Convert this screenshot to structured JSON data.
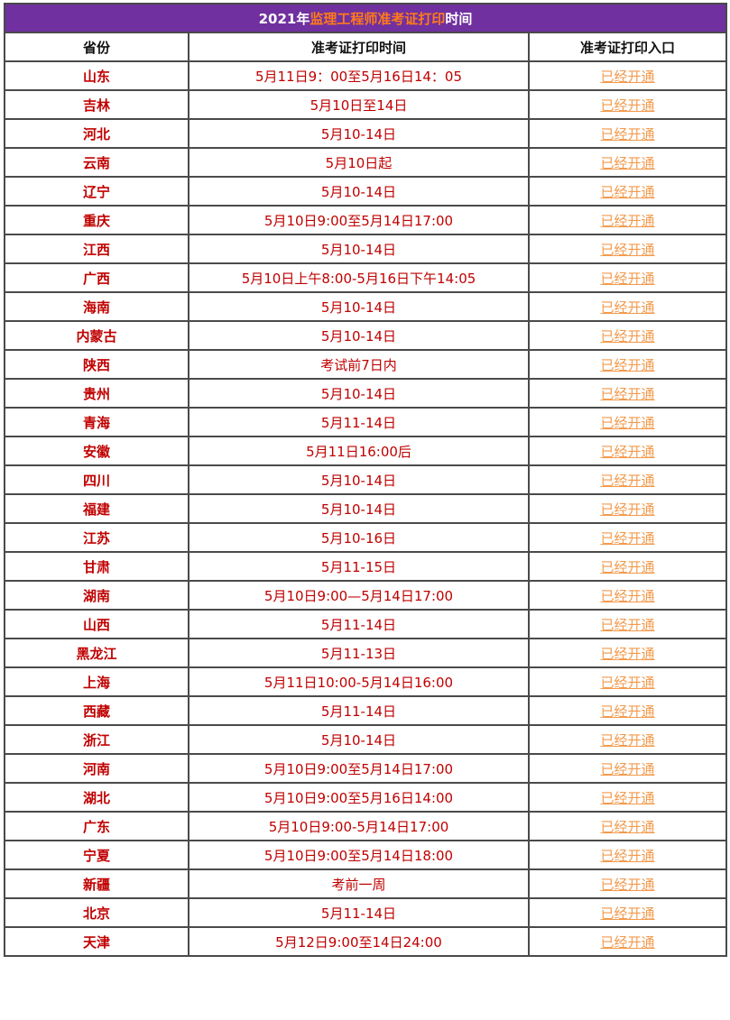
{
  "title": {
    "prefix": "2021年",
    "highlight": "监理工程师准考证打印",
    "suffix": "时间"
  },
  "headers": [
    "省份",
    "准考证打印时间",
    "准考证打印入口"
  ],
  "colors": {
    "title_bg": "#7030a0",
    "highlight": "#ff7a1a",
    "province": "#c00000",
    "time": "#c00000",
    "link": "#f39a4c"
  },
  "rows": [
    {
      "province": "山东",
      "time": "5月11日9：00至5月16日14：05",
      "entry": "已经开通"
    },
    {
      "province": "吉林",
      "time": "5月10日至14日",
      "entry": "已经开通"
    },
    {
      "province": "河北",
      "time": "5月10-14日",
      "entry": "已经开通"
    },
    {
      "province": "云南",
      "time": "5月10日起",
      "entry": "已经开通"
    },
    {
      "province": "辽宁",
      "time": "5月10-14日",
      "entry": "已经开通"
    },
    {
      "province": "重庆",
      "time": "5月10日9:00至5月14日17:00",
      "entry": "已经开通"
    },
    {
      "province": "江西",
      "time": "5月10-14日",
      "entry": "已经开通"
    },
    {
      "province": "广西",
      "time": "5月10日上午8:00-5月16日下午14:05",
      "entry": "已经开通"
    },
    {
      "province": "海南",
      "time": "5月10-14日",
      "entry": "已经开通"
    },
    {
      "province": "内蒙古",
      "time": "5月10-14日",
      "entry": "已经开通"
    },
    {
      "province": "陕西",
      "time": "考试前7日内",
      "entry": "已经开通"
    },
    {
      "province": "贵州",
      "time": "5月10-14日",
      "entry": "已经开通"
    },
    {
      "province": "青海",
      "time": "5月11-14日",
      "entry": "已经开通"
    },
    {
      "province": "安徽",
      "time": "5月11日16:00后",
      "entry": "已经开通"
    },
    {
      "province": "四川",
      "time": "5月10-14日",
      "entry": "已经开通"
    },
    {
      "province": "福建",
      "time": "5月10-14日",
      "entry": "已经开通"
    },
    {
      "province": "江苏",
      "time": "5月10-16日",
      "entry": "已经开通"
    },
    {
      "province": "甘肃",
      "time": "5月11-15日",
      "entry": "已经开通"
    },
    {
      "province": "湖南",
      "time": "5月10日9:00—5月14日17:00",
      "entry": "已经开通"
    },
    {
      "province": "山西",
      "time": "5月11-14日",
      "entry": "已经开通"
    },
    {
      "province": "黑龙江",
      "time": "5月11-13日",
      "entry": "已经开通"
    },
    {
      "province": "上海",
      "time": "5月11日10:00-5月14日16:00",
      "entry": "已经开通"
    },
    {
      "province": "西藏",
      "time": "5月11-14日",
      "entry": "已经开通"
    },
    {
      "province": "浙江",
      "time": "5月10-14日",
      "entry": "已经开通"
    },
    {
      "province": "河南",
      "time": "5月10日9:00至5月14日17:00",
      "entry": "已经开通"
    },
    {
      "province": "湖北",
      "time": "5月10日9:00至5月16日14:00",
      "entry": "已经开通"
    },
    {
      "province": "广东",
      "time": "5月10日9:00-5月14日17:00",
      "entry": "已经开通"
    },
    {
      "province": "宁夏",
      "time": "5月10日9:00至5月14日18:00",
      "entry": "已经开通"
    },
    {
      "province": "新疆",
      "time": "考前一周",
      "entry": "已经开通"
    },
    {
      "province": "北京",
      "time": "5月11-14日",
      "entry": "已经开通"
    },
    {
      "province": "天津",
      "time": "5月12日9:00至14日24:00",
      "entry": "已经开通"
    }
  ]
}
